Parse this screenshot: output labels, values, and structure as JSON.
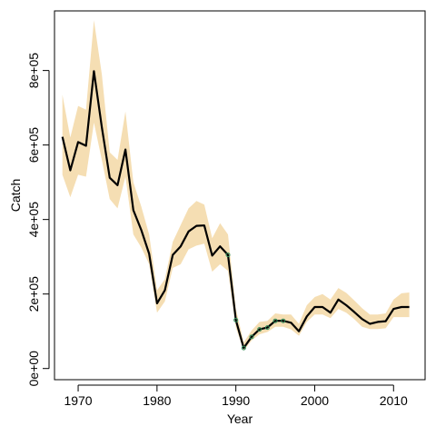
{
  "chart_data": {
    "type": "line",
    "title": "",
    "xlabel": "Year",
    "ylabel": "Catch",
    "xlim": [
      1967,
      2014
    ],
    "ylim": [
      -30000,
      960000
    ],
    "x_ticks": [
      1970,
      1980,
      1990,
      2000,
      2010
    ],
    "x_tick_labels": [
      "1970",
      "1980",
      "1990",
      "2000",
      "2010"
    ],
    "y_ticks": [
      0,
      200000,
      400000,
      600000,
      800000
    ],
    "y_tick_labels": [
      "0e+00",
      "2e+05",
      "4e+05",
      "6e+05",
      "8e+05"
    ],
    "grid": false,
    "colors": {
      "band": "#f5deb3",
      "line": "#000000",
      "points": "#2e8b57"
    },
    "series": [
      {
        "type": "band",
        "x": [
          1968,
          1969,
          1970,
          1971,
          1972,
          1973,
          1974,
          1975,
          1976,
          1977,
          1978,
          1979,
          1980,
          1981,
          1982,
          1983,
          1984,
          1985,
          1986,
          1987,
          1988,
          1989,
          1990,
          1991,
          1992,
          1993,
          1994,
          1995,
          1996,
          1997,
          1998,
          1999,
          2000,
          2001,
          2002,
          2003,
          2004,
          2005,
          2006,
          2007,
          2008,
          2009,
          2010,
          2011,
          2012
        ],
        "lower": [
          520000,
          460000,
          520000,
          515000,
          660000,
          560000,
          455000,
          430000,
          515000,
          360000,
          325000,
          280000,
          150000,
          180000,
          270000,
          280000,
          320000,
          330000,
          335000,
          260000,
          280000,
          262000,
          110000,
          48000,
          75000,
          92000,
          98000,
          112000,
          112000,
          105000,
          88000,
          125000,
          145000,
          145000,
          135000,
          160000,
          150000,
          133000,
          112000,
          106000,
          106000,
          108000,
          138000,
          138000,
          138000
        ],
        "upper": [
          735000,
          620000,
          705000,
          695000,
          935000,
          790000,
          580000,
          560000,
          690000,
          500000,
          435000,
          360000,
          210000,
          240000,
          340000,
          385000,
          430000,
          450000,
          440000,
          350000,
          390000,
          360000,
          160000,
          70000,
          102000,
          125000,
          128000,
          148000,
          145000,
          145000,
          120000,
          170000,
          192000,
          200000,
          185000,
          216000,
          203000,
          183000,
          162000,
          145000,
          145000,
          148000,
          185000,
          202000,
          204000
        ]
      },
      {
        "type": "line",
        "x": [
          1968,
          1969,
          1970,
          1971,
          1972,
          1973,
          1974,
          1975,
          1976,
          1977,
          1978,
          1979,
          1980,
          1981,
          1982,
          1983,
          1984,
          1985,
          1986,
          1987,
          1988,
          1989,
          1990,
          1991,
          1992,
          1993,
          1994,
          1995,
          1996,
          1997,
          1998,
          1999,
          2000,
          2001,
          2002,
          2003,
          2004,
          2005,
          2006,
          2007,
          2008,
          2009,
          2010,
          2011,
          2012
        ],
        "y": [
          622000,
          532000,
          608000,
          598000,
          798000,
          648000,
          512000,
          492000,
          588000,
          425000,
          372000,
          308000,
          175000,
          210000,
          305000,
          328000,
          368000,
          383000,
          384000,
          303000,
          328000,
          305000,
          130000,
          55000,
          85000,
          105000,
          110000,
          128000,
          128000,
          123000,
          100000,
          140000,
          165000,
          165000,
          150000,
          185000,
          170000,
          152000,
          133000,
          120000,
          125000,
          127000,
          160000,
          165000,
          165000
        ]
      },
      {
        "type": "points",
        "x": [
          1989,
          1990,
          1991,
          1992,
          1993,
          1994,
          1995,
          1996
        ],
        "y": [
          305000,
          130000,
          55000,
          85000,
          105000,
          110000,
          128000,
          128000
        ]
      }
    ]
  }
}
